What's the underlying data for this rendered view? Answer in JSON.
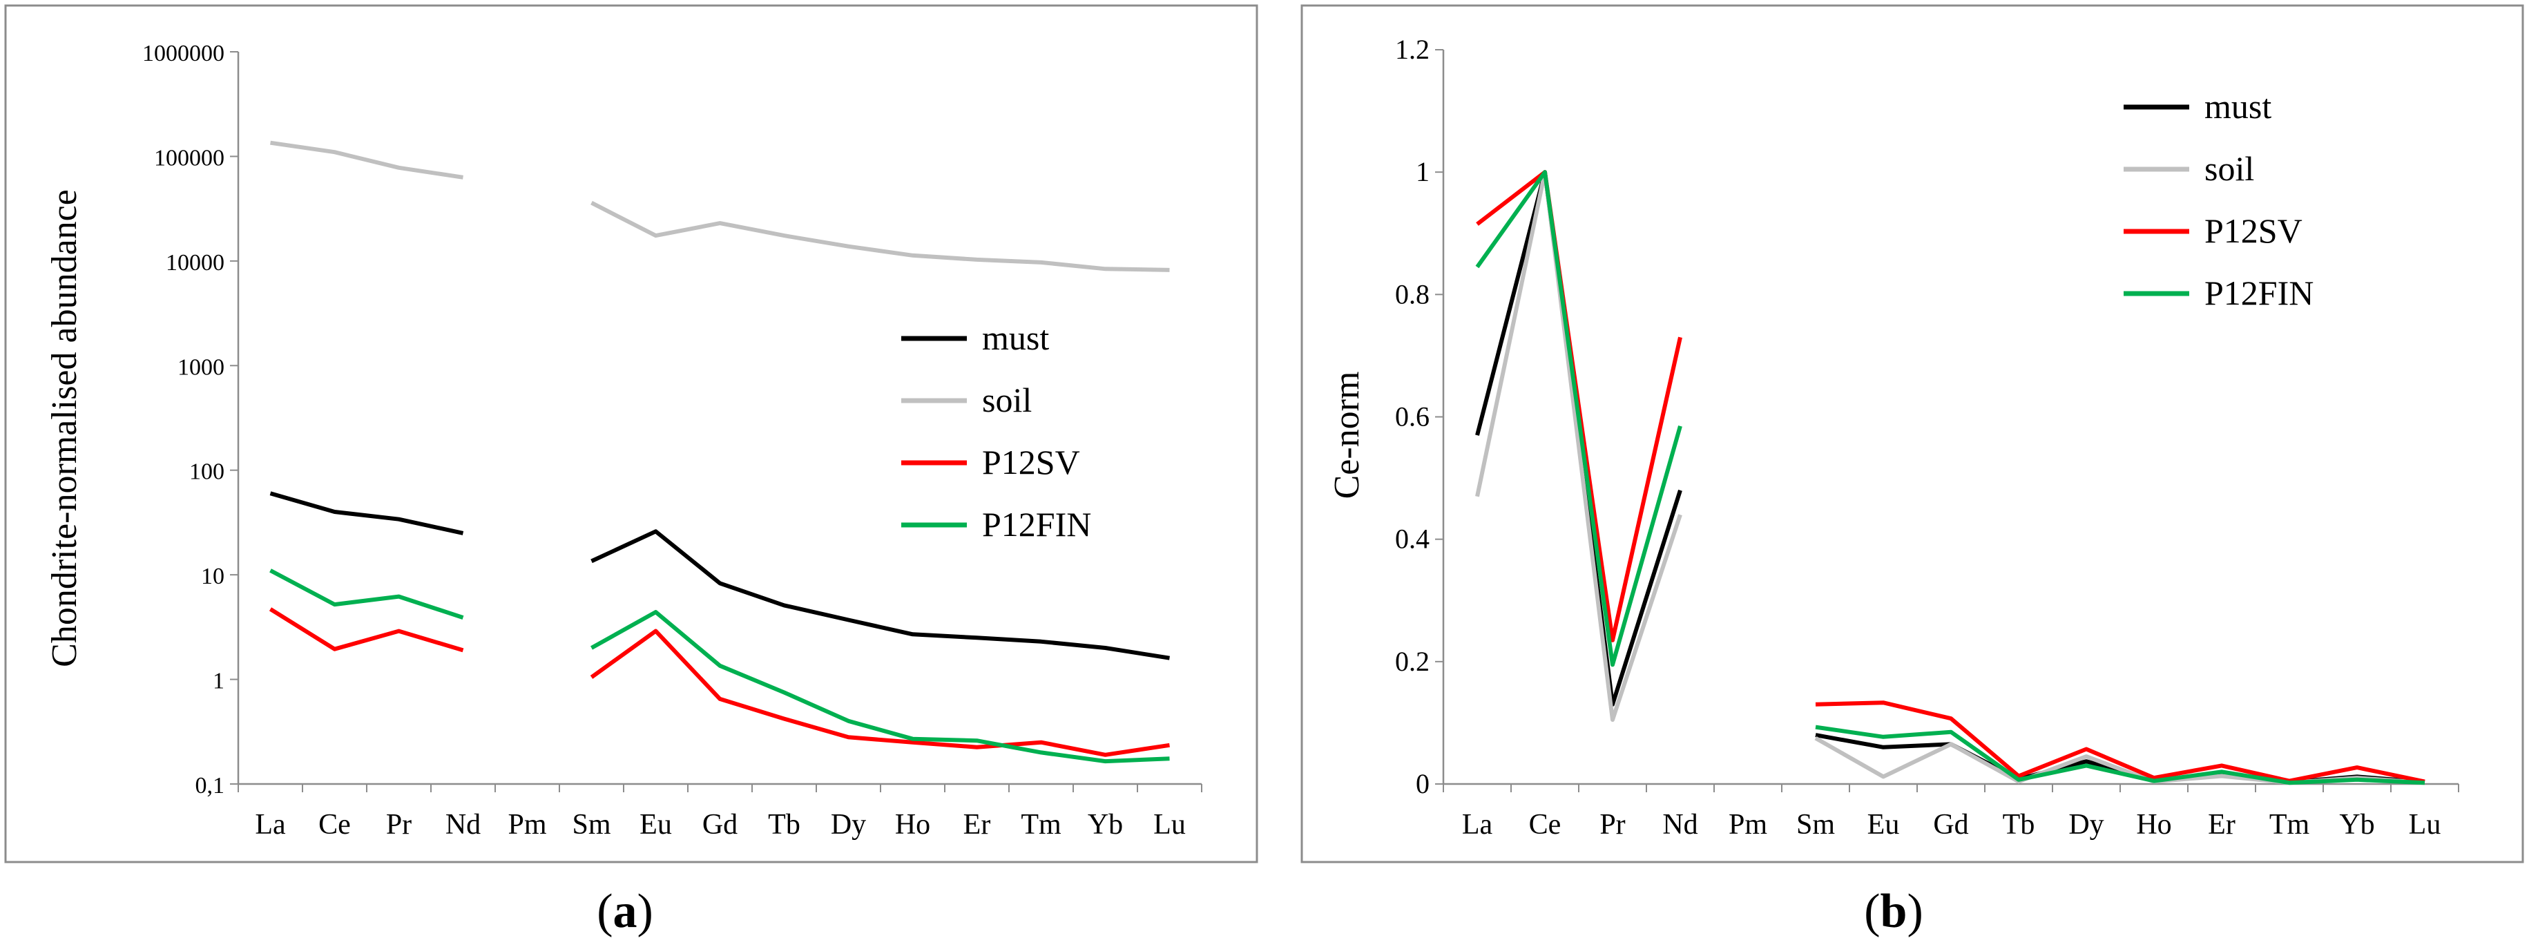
{
  "chart_data": [
    {
      "type": "line",
      "panel": "a",
      "caption_letter": "a",
      "title": "",
      "xlabel": "",
      "ylabel": "Chondrite-normalised abundance",
      "yscale": "log",
      "ylim": [
        0.1,
        1000000
      ],
      "y_ticks": [
        0.1,
        1,
        10,
        100,
        1000,
        10000,
        100000,
        1000000
      ],
      "y_tick_labels": [
        "0,1",
        "1",
        "10",
        "100",
        "1000",
        "10000",
        "100000",
        "1000000"
      ],
      "categories": [
        "La",
        "Ce",
        "Pr",
        "Nd",
        "Pm",
        "Sm",
        "Eu",
        "Gd",
        "Tb",
        "Dy",
        "Ho",
        "Er",
        "Tm",
        "Yb",
        "Lu"
      ],
      "grid": false,
      "legend_position": "right-middle",
      "series": [
        {
          "name": "must",
          "color": "#000000",
          "values": [
            60,
            40,
            34,
            25,
            null,
            13.5,
            26,
            8.3,
            5.1,
            3.7,
            2.7,
            2.5,
            2.3,
            2.0,
            1.6
          ]
        },
        {
          "name": "soil",
          "color": "#c0c0c0",
          "values": [
            135000,
            110000,
            78000,
            63000,
            null,
            36000,
            17500,
            23000,
            17500,
            13800,
            11300,
            10300,
            9700,
            8400,
            8200
          ]
        },
        {
          "name": "P12SV",
          "color": "#ff0000",
          "values": [
            4.7,
            1.95,
            2.9,
            1.9,
            null,
            1.05,
            2.9,
            0.65,
            0.42,
            0.28,
            0.25,
            0.225,
            0.25,
            0.19,
            0.235
          ]
        },
        {
          "name": "P12FIN",
          "color": "#00b050",
          "values": [
            11,
            5.2,
            6.2,
            3.9,
            null,
            2.0,
            4.4,
            1.35,
            0.75,
            0.4,
            0.27,
            0.26,
            0.2,
            0.165,
            0.175
          ]
        }
      ]
    },
    {
      "type": "line",
      "panel": "b",
      "caption_letter": "b",
      "title": "",
      "xlabel": "",
      "ylabel": "Ce-norm",
      "yscale": "linear",
      "ylim": [
        0,
        1.2
      ],
      "y_ticks": [
        0,
        0.2,
        0.4,
        0.6,
        0.8,
        1.0,
        1.2
      ],
      "y_tick_labels": [
        "0",
        "0.2",
        "0.4",
        "0.6",
        "0.8",
        "1",
        "1.2"
      ],
      "categories": [
        "La",
        "Ce",
        "Pr",
        "Nd",
        "Pm",
        "Sm",
        "Eu",
        "Gd",
        "Tb",
        "Dy",
        "Ho",
        "Er",
        "Tm",
        "Yb",
        "Lu"
      ],
      "grid": false,
      "legend_position": "top-right",
      "series": [
        {
          "name": "must",
          "color": "#000000",
          "values": [
            0.57,
            1.0,
            0.13,
            0.48,
            null,
            0.08,
            0.06,
            0.065,
            0.008,
            0.037,
            0.006,
            0.015,
            0.003,
            0.012,
            0.003
          ]
        },
        {
          "name": "soil",
          "color": "#c0c0c0",
          "values": [
            0.47,
            1.0,
            0.105,
            0.44,
            null,
            0.075,
            0.012,
            0.065,
            0.004,
            0.045,
            0.004,
            0.013,
            0.002,
            0.01,
            0.002
          ]
        },
        {
          "name": "P12SV",
          "color": "#ff0000",
          "values": [
            0.915,
            1.0,
            0.235,
            0.73,
            null,
            0.13,
            0.133,
            0.107,
            0.013,
            0.057,
            0.01,
            0.03,
            0.005,
            0.027,
            0.004
          ]
        },
        {
          "name": "P12FIN",
          "color": "#00b050",
          "values": [
            0.845,
            1.0,
            0.195,
            0.585,
            null,
            0.093,
            0.077,
            0.085,
            0.007,
            0.03,
            0.005,
            0.02,
            0.002,
            0.007,
            0.002
          ]
        }
      ]
    }
  ]
}
